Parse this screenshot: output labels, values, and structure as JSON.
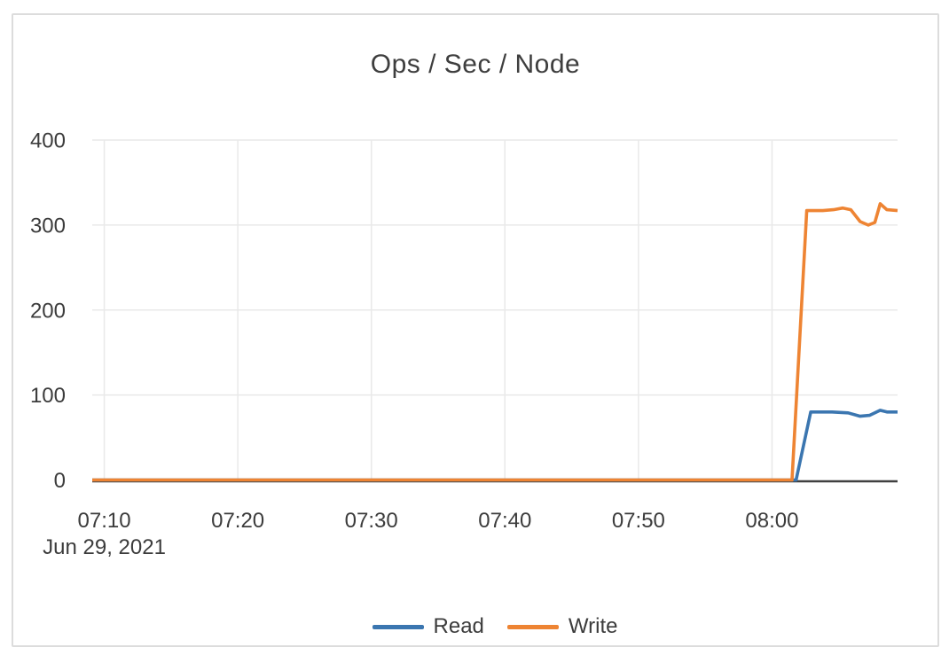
{
  "chart_data": {
    "type": "line",
    "title": "Ops / Sec / Node",
    "x_axis": {
      "date_label": "Jun 29, 2021",
      "ticks": [
        {
          "minute": 10,
          "label": "07:10"
        },
        {
          "minute": 20,
          "label": "07:20"
        },
        {
          "minute": 30,
          "label": "07:30"
        },
        {
          "minute": 40,
          "label": "07:40"
        },
        {
          "minute": 50,
          "label": "07:50"
        },
        {
          "minute": 60,
          "label": "08:00"
        }
      ],
      "range_minutes": [
        9.1,
        69.4
      ]
    },
    "y_axis": {
      "ticks": [
        0,
        100,
        200,
        300,
        400
      ],
      "range": [
        0,
        400
      ]
    },
    "grid": true,
    "legend_position": "bottom",
    "series": [
      {
        "name": "Read",
        "color": "#3b76b0",
        "points": [
          [
            9.1,
            0
          ],
          [
            61.8,
            0
          ],
          [
            62.9,
            80
          ],
          [
            64.5,
            80
          ],
          [
            65.7,
            79
          ],
          [
            66.6,
            75
          ],
          [
            67.3,
            76
          ],
          [
            68.1,
            82
          ],
          [
            68.6,
            80
          ],
          [
            69.4,
            80
          ]
        ]
      },
      {
        "name": "Write",
        "color": "#ee8433",
        "points": [
          [
            9.1,
            0
          ],
          [
            61.5,
            0
          ],
          [
            62.6,
            317
          ],
          [
            63.8,
            317
          ],
          [
            64.6,
            318
          ],
          [
            65.3,
            320
          ],
          [
            65.9,
            318
          ],
          [
            66.6,
            304
          ],
          [
            67.2,
            300
          ],
          [
            67.7,
            303
          ],
          [
            68.1,
            325
          ],
          [
            68.6,
            318
          ],
          [
            69.4,
            317
          ]
        ]
      }
    ],
    "colors": {
      "grid": "#e9e9e9",
      "axis": "#404040",
      "text": "#3c3c3c",
      "card_border": "#dcdcdc"
    }
  }
}
